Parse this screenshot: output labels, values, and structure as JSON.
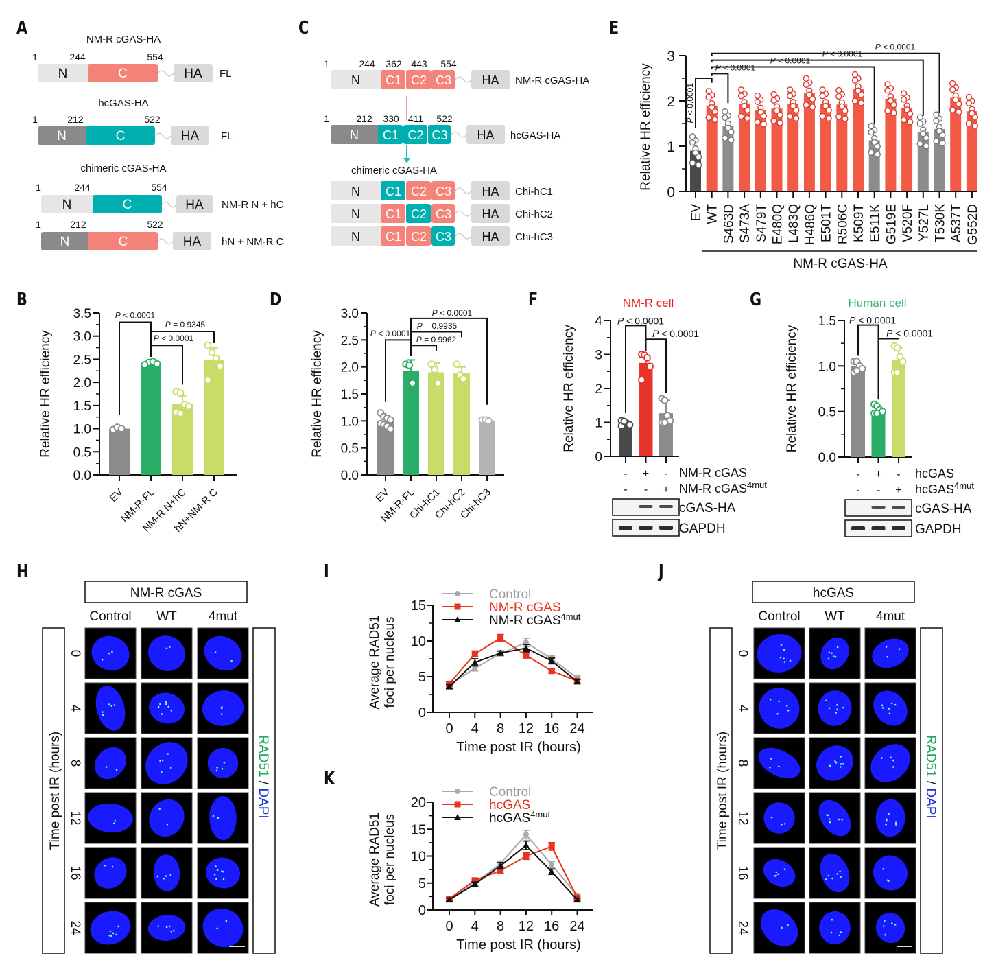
{
  "panels": {
    "A": {
      "label": "A",
      "constructs": [
        {
          "title": "NM-R cGAS-HA",
          "pos": [
            "1",
            "244",
            "554"
          ],
          "n_label": "N",
          "c_label": "C",
          "ha_label": "HA",
          "n_color": "#e6e6e6",
          "c_color": "#f4837a",
          "n_text_color": "#111",
          "tag": "FL"
        },
        {
          "title": "hcGAS-HA",
          "pos": [
            "1",
            "212",
            "522"
          ],
          "n_label": "N",
          "c_label": "C",
          "ha_label": "HA",
          "n_color": "#8a8a8a",
          "c_color": "#00b0b0",
          "n_text_color": "#fff",
          "tag": "FL"
        },
        {
          "title": "chimeric cGAS-HA",
          "pos": [
            "1",
            "244",
            "554"
          ],
          "n_label": "N",
          "c_label": "C",
          "ha_label": "HA",
          "n_color": "#e6e6e6",
          "c_color": "#00b0b0",
          "n_text_color": "#111",
          "tag": "NM-R N + hC"
        },
        {
          "title": "",
          "pos": [
            "1",
            "212",
            "522"
          ],
          "n_label": "N",
          "c_label": "C",
          "ha_label": "HA",
          "n_color": "#8a8a8a",
          "c_color": "#f4837a",
          "n_text_color": "#fff",
          "tag": "hN + NM-R C"
        }
      ]
    },
    "C": {
      "label": "C",
      "title_chimeric": "chimeric cGAS-HA",
      "constructs": [
        {
          "pos": [
            "1",
            "244",
            "362",
            "443",
            "554"
          ],
          "n_color": "#e6e6e6",
          "n_text_color": "#111",
          "segs": [
            {
              "label": "C1",
              "color": "#f4837a"
            },
            {
              "label": "C2",
              "color": "#f4837a"
            },
            {
              "label": "C3",
              "color": "#f4837a"
            }
          ],
          "ha_label": "HA",
          "n_label": "N",
          "tag": "NM-R cGAS-HA"
        },
        {
          "pos": [
            "1",
            "212",
            "330",
            "411",
            "522"
          ],
          "n_color": "#8a8a8a",
          "n_text_color": "#fff",
          "segs": [
            {
              "label": "C1",
              "color": "#00b0b0"
            },
            {
              "label": "C2",
              "color": "#00b0b0"
            },
            {
              "label": "C3",
              "color": "#00b0b0"
            }
          ],
          "ha_label": "HA",
          "n_label": "N",
          "tag": "hcGAS-HA"
        },
        {
          "pos": [],
          "n_color": "#e6e6e6",
          "n_text_color": "#111",
          "segs": [
            {
              "label": "C1",
              "color": "#00b0b0"
            },
            {
              "label": "C2",
              "color": "#f4837a"
            },
            {
              "label": "C3",
              "color": "#f4837a"
            }
          ],
          "ha_label": "HA",
          "n_label": "N",
          "tag": "Chi-hC1"
        },
        {
          "pos": [],
          "n_color": "#e6e6e6",
          "n_text_color": "#111",
          "segs": [
            {
              "label": "C1",
              "color": "#f4837a"
            },
            {
              "label": "C2",
              "color": "#00b0b0"
            },
            {
              "label": "C3",
              "color": "#f4837a"
            }
          ],
          "ha_label": "HA",
          "n_label": "N",
          "tag": "Chi-hC2"
        },
        {
          "pos": [],
          "n_color": "#e6e6e6",
          "n_text_color": "#111",
          "segs": [
            {
              "label": "C1",
              "color": "#f4837a"
            },
            {
              "label": "C2",
              "color": "#f4837a"
            },
            {
              "label": "C3",
              "color": "#00b0b0"
            }
          ],
          "ha_label": "HA",
          "n_label": "N",
          "tag": "Chi-hC3"
        }
      ]
    },
    "H": {
      "label": "H",
      "group": "NM-R cGAS",
      "columns": [
        "Control",
        "WT",
        "4mut"
      ],
      "rows": [
        "0",
        "4",
        "8",
        "12",
        "16",
        "24"
      ],
      "row_axis": "Time post IR (hours)",
      "stain_green": "RAD51",
      "stain_sep": " / ",
      "stain_blue": "DAPI"
    },
    "J": {
      "label": "J",
      "group": "hcGAS",
      "columns": [
        "Control",
        "WT",
        "4mut"
      ],
      "rows": [
        "0",
        "4",
        "8",
        "12",
        "16",
        "24"
      ],
      "row_axis": "Time post IR (hours)",
      "stain_green": "RAD51",
      "stain_sep": " / ",
      "stain_blue": "DAPI"
    }
  },
  "colors": {
    "nmr_red": "#f25a45",
    "human_green": "#2aad66",
    "light_green": "#c8dc6a",
    "gray": "#8c8c8c",
    "dark_gray": "#4a4a4a",
    "light_gray": "#b4b4b4",
    "teal": "#00b0b0",
    "salmon": "#f4837a"
  },
  "chart_data": [
    {
      "id": "E",
      "label": "E",
      "type": "bar",
      "ylabel": "Relative HR efficiency",
      "ylim": [
        0,
        3
      ],
      "yticks": [
        "0",
        "1",
        "2",
        "3"
      ],
      "minor_step": 0.5,
      "categories": [
        "EV",
        "WT",
        "S463D",
        "S473A",
        "S479T",
        "E480Q",
        "L483Q",
        "H486Q",
        "E501T",
        "R506C",
        "K509T",
        "E511K",
        "G519E",
        "V520F",
        "Y527L",
        "T530K",
        "A537T",
        "G552D"
      ],
      "values": [
        0.9,
        1.9,
        1.45,
        1.93,
        1.8,
        1.83,
        1.93,
        2.18,
        1.93,
        1.92,
        2.27,
        1.13,
        2.05,
        1.85,
        1.32,
        1.38,
        2.07,
        1.77
      ],
      "bar_colors": [
        "#4a4a4a",
        "#f25a45",
        "#8c8c8c",
        "#f25a45",
        "#f25a45",
        "#f25a45",
        "#f25a45",
        "#f25a45",
        "#f25a45",
        "#f25a45",
        "#f25a45",
        "#8c8c8c",
        "#f25a45",
        "#f25a45",
        "#8c8c8c",
        "#8c8c8c",
        "#f25a45",
        "#f25a45"
      ],
      "group_label": "NM-R cGAS-HA",
      "comparisons": [
        {
          "from": 0,
          "to": 1,
          "text": "P < 0.0001",
          "vertical": true
        },
        {
          "from": 1,
          "to": 2,
          "text": "P < 0.0001"
        },
        {
          "from": 1,
          "to": 11,
          "text": "P < 0.0001"
        },
        {
          "from": 1,
          "to": 14,
          "text": "P < 0.0001"
        },
        {
          "from": 1,
          "to": 15,
          "text": "P < 0.0001"
        }
      ]
    },
    {
      "id": "B",
      "label": "B",
      "type": "bar",
      "ylabel": "Relative HR efficiency",
      "ylim": [
        0,
        3.5
      ],
      "yticks": [
        "0.0",
        "0.5",
        "1.0",
        "1.5",
        "2.0",
        "2.5",
        "3.0",
        "3.5"
      ],
      "minor_step": 0.25,
      "categories": [
        "EV",
        "NM-R-FL",
        "NM-R N+hC",
        "hN+NM-R C"
      ],
      "values": [
        1.0,
        2.4,
        1.53,
        2.48
      ],
      "errors": [
        0.03,
        0.05,
        0.18,
        0.27
      ],
      "points": [
        [
          0.98,
          1.03,
          1.0
        ],
        [
          2.38,
          2.43,
          2.45,
          2.4,
          2.38
        ],
        [
          1.8,
          1.77,
          1.52,
          1.48,
          1.35,
          1.33
        ],
        [
          2.8,
          2.65,
          2.52,
          2.35,
          2.05
        ]
      ],
      "bar_colors": [
        "#8c8c8c",
        "#2aad66",
        "#c8dc6a",
        "#c8dc6a"
      ],
      "comparisons": [
        {
          "from": 0,
          "to": 1,
          "text": "P < 0.0001",
          "level": 3.3
        },
        {
          "from": 1,
          "to": 3,
          "text": "P = 0.9345",
          "level": 3.1
        },
        {
          "from": 1,
          "to": 2,
          "text": "P < 0.0001",
          "level": 2.8
        }
      ]
    },
    {
      "id": "D",
      "label": "D",
      "type": "bar",
      "ylabel": "Relative HR efficiency",
      "ylim": [
        0,
        3.0
      ],
      "yticks": [
        "0.0",
        "0.5",
        "1.0",
        "1.5",
        "2.0",
        "2.5",
        "3.0"
      ],
      "minor_step": 0.25,
      "categories": [
        "EV",
        "NM-R-FL",
        "Chi-hC1",
        "Chi-hC2",
        "Chi-hC3"
      ],
      "values": [
        1.0,
        1.93,
        1.9,
        1.88,
        1.0
      ],
      "errors": [
        0.1,
        0.2,
        0.17,
        0.12,
        0.03
      ],
      "points": [
        [
          1.15,
          1.08,
          1.05,
          1.02,
          0.95,
          0.93,
          0.9,
          0.85
        ],
        [
          2.05,
          2.03,
          1.7
        ],
        [
          2.05,
          1.95,
          1.7
        ],
        [
          2.05,
          1.85,
          1.78
        ],
        [
          1.02,
          1.02,
          1.0
        ]
      ],
      "bar_colors": [
        "#8c8c8c",
        "#2aad66",
        "#c8dc6a",
        "#c8dc6a",
        "#b4b4b4"
      ],
      "comparisons": [
        {
          "from": 1,
          "to": 4,
          "text": "P < 0.0001",
          "level": 2.9
        },
        {
          "from": 1,
          "to": 3,
          "text": "P = 0.9935",
          "level": 2.65
        },
        {
          "from": 0,
          "to": 1,
          "text": "P < 0.0001",
          "level": 2.5
        },
        {
          "from": 1,
          "to": 2,
          "text": "P = 0.9962",
          "level": 2.4
        }
      ]
    },
    {
      "id": "F",
      "label": "F",
      "type": "bar",
      "title": "NM-R cell",
      "title_color": "#e8231e",
      "ylabel": "Relative HR efficiency",
      "ylim": [
        0,
        4
      ],
      "yticks": [
        "0",
        "1",
        "2",
        "3",
        "4"
      ],
      "minor_step": 0.5,
      "categories": [
        "-/-",
        "+/-",
        "-/+"
      ],
      "values": [
        0.97,
        2.75,
        1.27
      ],
      "errors": [
        0.05,
        0.22,
        0.38
      ],
      "points": [
        [
          1.05,
          1.0,
          0.97,
          0.93,
          0.9,
          1.03
        ],
        [
          3.0,
          2.98,
          2.9,
          2.65,
          2.25
        ],
        [
          1.7,
          1.65,
          1.2,
          1.05,
          1.0,
          1.0
        ]
      ],
      "bar_colors": [
        "#4a4a4a",
        "#e8332a",
        "#8c8c8c"
      ],
      "conditions": [
        {
          "label": "NM-R cGAS",
          "sup": "",
          "signs": [
            "-",
            "+",
            "-"
          ]
        },
        {
          "label": "NM-R cGAS",
          "sup": "4mut",
          "signs": [
            "-",
            "-",
            "+"
          ]
        }
      ],
      "blots": [
        "cGAS-HA",
        "GAPDH"
      ],
      "comparisons": [
        {
          "from": 0,
          "to": 1,
          "text": "P < 0.0001",
          "level": 3.85
        },
        {
          "from": 1,
          "to": 2,
          "text": "P < 0.0001",
          "level": 3.45
        }
      ]
    },
    {
      "id": "G",
      "label": "G",
      "type": "bar",
      "title": "Human cell",
      "title_color": "#3cb46e",
      "ylabel": "Relative HR efficiency",
      "ylim": [
        0,
        1.5
      ],
      "yticks": [
        "0.0",
        "0.5",
        "1.0",
        "1.5"
      ],
      "minor_step": 0.25,
      "categories": [
        "-/-",
        "+/-",
        "-/+"
      ],
      "values": [
        1.0,
        0.5,
        1.07
      ],
      "errors": [
        0.03,
        0.04,
        0.13
      ],
      "points": [
        [
          1.05,
          1.05,
          1.0,
          0.97,
          0.93,
          0.95
        ],
        [
          0.58,
          0.56,
          0.52,
          0.5,
          0.48,
          0.48
        ],
        [
          1.22,
          1.2,
          1.1,
          1.05,
          0.93,
          0.93
        ]
      ],
      "bar_colors": [
        "#8c8c8c",
        "#2aad66",
        "#c8dc6a"
      ],
      "conditions": [
        {
          "label": "hcGAS",
          "sup": "",
          "signs": [
            "-",
            "+",
            "-"
          ]
        },
        {
          "label": "hcGAS",
          "sup": "4mut",
          "signs": [
            "-",
            "-",
            "+"
          ]
        }
      ],
      "blots": [
        "cGAS-HA",
        "GAPDH"
      ],
      "comparisons": [
        {
          "from": 0,
          "to": 1,
          "text": "P < 0.0001",
          "level": 1.45
        },
        {
          "from": 1,
          "to": 2,
          "text": "P < 0.0001",
          "level": 1.3
        }
      ]
    },
    {
      "id": "I",
      "label": "I",
      "type": "line",
      "xlabel": "Time post IR (hours)",
      "ylabel": "Average RAD51\nfoci per nucleus",
      "x": [
        "0",
        "4",
        "8",
        "12",
        "16",
        "24"
      ],
      "ylim": [
        0,
        15
      ],
      "yticks": [
        "0",
        "5",
        "10",
        "15"
      ],
      "minor_step": 2.5,
      "series": [
        {
          "name": "Control",
          "sup": "",
          "color": "#aaaaaa",
          "marker": "circle",
          "values": [
            3.8,
            6.2,
            8.2,
            9.8,
            7.5,
            4.8
          ],
          "errors": [
            0.3,
            0.4,
            0.3,
            0.6,
            0.4,
            0.3
          ]
        },
        {
          "name": "NM-R cGAS",
          "sup": "",
          "color": "#e8331e",
          "marker": "square",
          "values": [
            4.0,
            8.2,
            10.4,
            8.0,
            5.8,
            4.4
          ],
          "errors": [
            0.3,
            0.4,
            0.5,
            0.4,
            0.3,
            0.3
          ]
        },
        {
          "name": "NM-R cGAS",
          "sup": "4mut",
          "color": "#111111",
          "marker": "triangle",
          "values": [
            3.6,
            7.0,
            8.3,
            9.0,
            7.2,
            4.3
          ],
          "errors": [
            0.3,
            0.5,
            0.3,
            0.5,
            0.4,
            0.3
          ]
        }
      ]
    },
    {
      "id": "K",
      "label": "K",
      "type": "line",
      "xlabel": "Time post IR (hours)",
      "ylabel": "Average RAD51\nfoci per nucleus",
      "x": [
        "0",
        "4",
        "8",
        "12",
        "16",
        "24"
      ],
      "ylim": [
        0,
        20
      ],
      "yticks": [
        "0",
        "5",
        "10",
        "15",
        "20"
      ],
      "minor_step": 2.5,
      "series": [
        {
          "name": "Control",
          "sup": "",
          "color": "#aaaaaa",
          "marker": "circle",
          "values": [
            2.0,
            5.0,
            8.6,
            14.0,
            8.4,
            2.7
          ],
          "errors": [
            0.3,
            0.4,
            0.5,
            0.8,
            0.6,
            0.3
          ]
        },
        {
          "name": "hcGAS",
          "sup": "",
          "color": "#e8331e",
          "marker": "square",
          "values": [
            2.1,
            5.5,
            7.3,
            10.0,
            11.8,
            2.3
          ],
          "errors": [
            0.3,
            0.3,
            0.5,
            0.6,
            0.7,
            0.3
          ]
        },
        {
          "name": "hcGAS",
          "sup": "4mut",
          "color": "#111111",
          "marker": "triangle",
          "values": [
            1.9,
            4.8,
            8.2,
            12.0,
            7.1,
            1.9
          ],
          "errors": [
            0.3,
            0.4,
            0.6,
            0.8,
            0.5,
            0.3
          ]
        }
      ]
    }
  ]
}
